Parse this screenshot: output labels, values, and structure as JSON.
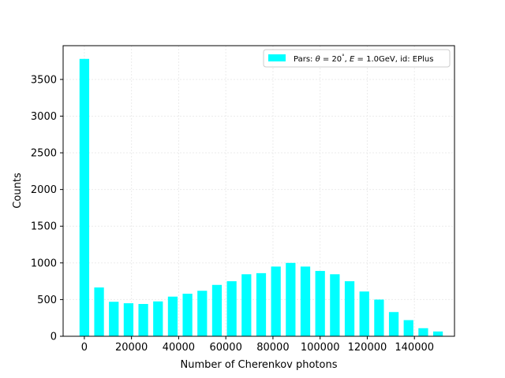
{
  "chart_data": {
    "type": "bar",
    "title": "",
    "xlabel": "Number of Cherenkov photons",
    "ylabel": "Counts",
    "xlim": [
      -9000,
      157000
    ],
    "ylim": [
      0,
      3960
    ],
    "grid": true,
    "legend_position": "top-right",
    "bin_width": 6000,
    "bar_width": 4100,
    "color": "#00ffff",
    "x_ticks": [
      0,
      20000,
      40000,
      60000,
      80000,
      100000,
      120000,
      140000
    ],
    "y_ticks": [
      0,
      500,
      1000,
      1500,
      2000,
      2500,
      3000,
      3500
    ],
    "series": [
      {
        "legend_prefix": "Pars: ",
        "legend_math1": "θ",
        "legend_eq1": " = 20",
        "legend_deg": "°",
        "legend_comma1": ", ",
        "legend_math2": "E",
        "legend_eq2": " = 1.0GeV, id: EPlus",
        "x": [
          0,
          6250,
          12500,
          18750,
          25000,
          31250,
          37500,
          43750,
          50000,
          56250,
          62500,
          68750,
          75000,
          81250,
          87500,
          93750,
          100000,
          106250,
          112500,
          118750,
          125000,
          131250,
          137500,
          143750,
          150000
        ],
        "values": [
          3780,
          665,
          470,
          450,
          440,
          475,
          540,
          580,
          620,
          700,
          750,
          845,
          860,
          950,
          1000,
          950,
          890,
          845,
          750,
          610,
          500,
          330,
          220,
          110,
          65
        ]
      }
    ]
  }
}
